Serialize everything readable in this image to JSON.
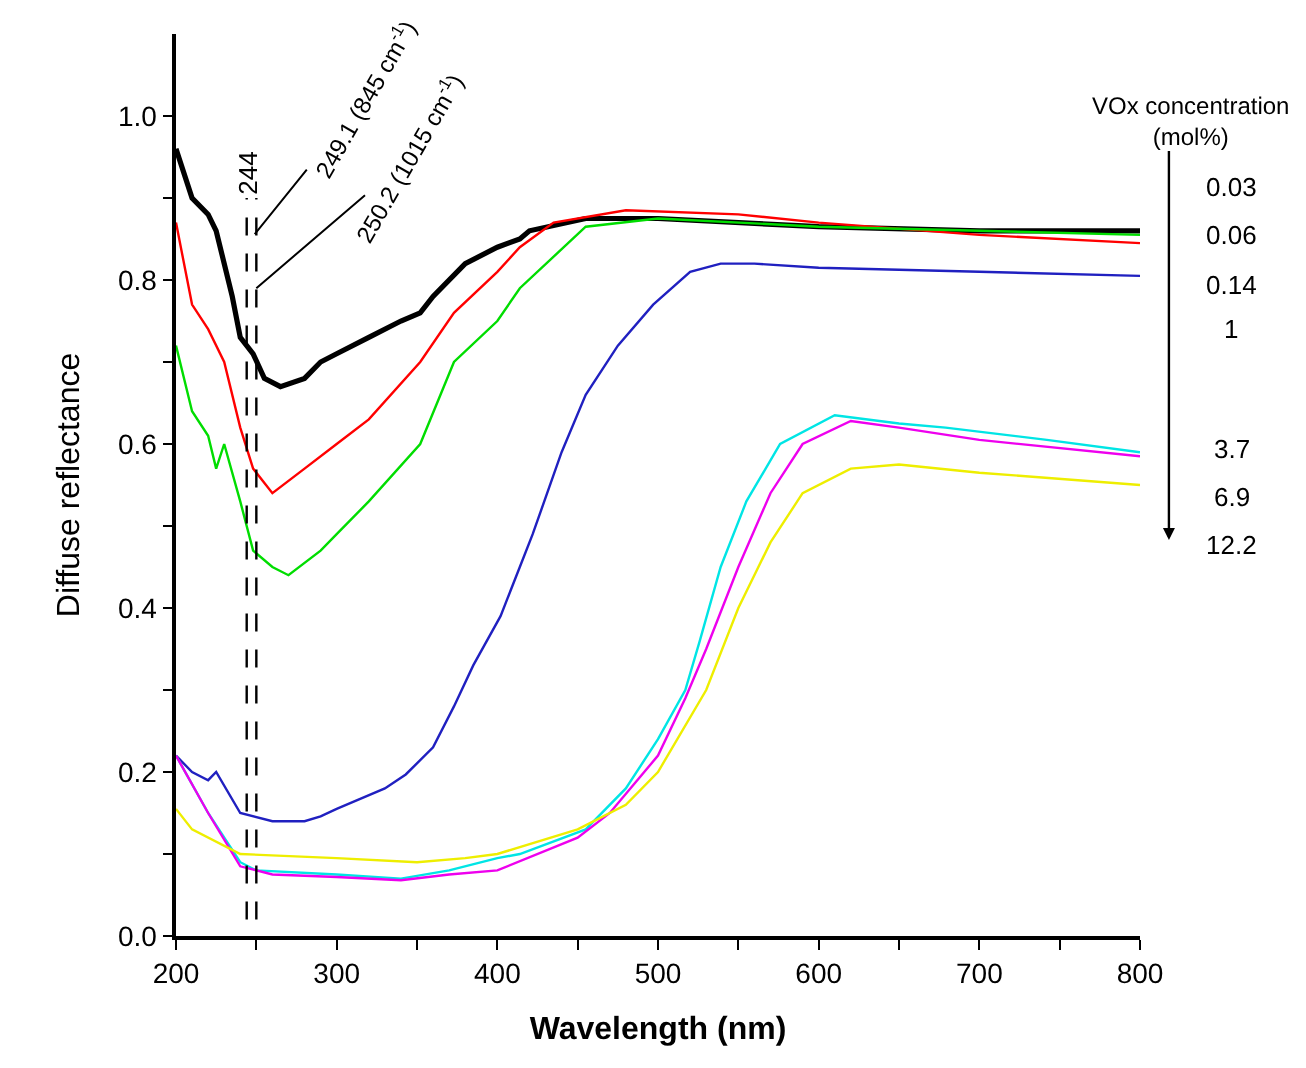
{
  "chart_data": {
    "type": "line",
    "xlabel": "Wavelength (nm)",
    "ylabel": "Diffuse reflectance",
    "xlim": [
      200,
      800
    ],
    "ylim": [
      0,
      1.1
    ],
    "xticks": [
      200,
      {
        "value": 250,
        "label": null
      },
      300,
      {
        "value": 350,
        "label": null
      },
      400,
      {
        "value": 450,
        "label": null
      },
      500,
      {
        "value": 550,
        "label": null
      },
      600,
      {
        "value": 650,
        "label": null
      },
      700,
      {
        "value": 750,
        "label": null
      },
      800
    ],
    "yticks": [
      {
        "value": 0,
        "label": "0.0"
      },
      {
        "value": 0.1,
        "label": null
      },
      0.2,
      {
        "value": 0.3,
        "label": null
      },
      0.4,
      {
        "value": 0.5,
        "label": null
      },
      0.6,
      {
        "value": 0.7,
        "label": null
      },
      0.8,
      {
        "value": 0.9,
        "label": null
      },
      {
        "value": 1.0,
        "label": "1.0"
      }
    ],
    "marker": "none",
    "line_style": "solid",
    "ref_lines": [
      {
        "axis": "x",
        "value": 244,
        "label": "244",
        "line_style": "dashed",
        "color": "#000000"
      },
      {
        "axis": "x",
        "value": 250,
        "label": null,
        "line_style": "dashed",
        "color": "#000000"
      }
    ],
    "annotations": [
      {
        "text": "249.1 (845 cm$^{-1}$)",
        "x": 249,
        "y": 0.856
      },
      {
        "text": "250.2 (1015 cm$^{-1}$)",
        "x": 250,
        "y": 0.79
      },
      "VOx concentration\n(mol%)",
      "0.03",
      "0.06",
      "0.14",
      "1",
      "3.7",
      "6.9",
      "12.2"
    ],
    "series": [
      {
        "color": "#000000",
        "x": [
          200,
          210,
          220,
          225,
          235,
          240,
          248,
          255,
          265,
          280,
          290,
          300,
          320,
          340,
          352,
          360,
          380,
          400,
          414,
          420,
          455,
          500,
          600,
          700,
          800
        ],
        "values": [
          0.96,
          0.9,
          0.88,
          0.86,
          0.78,
          0.73,
          0.71,
          0.68,
          0.67,
          0.68,
          0.7,
          0.71,
          0.73,
          0.75,
          0.76,
          0.78,
          0.82,
          0.84,
          0.85,
          0.86,
          0.875,
          0.875,
          0.865,
          0.86,
          0.86
        ]
      },
      {
        "color": "#ff0000",
        "x": [
          200,
          210,
          220,
          230,
          240,
          248,
          260,
          280,
          300,
          320,
          352,
          373,
          400,
          414,
          435,
          480,
          550,
          600,
          700,
          800
        ],
        "values": [
          0.87,
          0.77,
          0.74,
          0.7,
          0.62,
          0.57,
          0.54,
          0.57,
          0.6,
          0.63,
          0.7,
          0.76,
          0.81,
          0.84,
          0.87,
          0.885,
          0.88,
          0.87,
          0.855,
          0.845
        ]
      },
      {
        "color": "#00dd00",
        "x": [
          200,
          210,
          220,
          225,
          230,
          240,
          248,
          260,
          270,
          290,
          300,
          320,
          352,
          373,
          400,
          414,
          455,
          500,
          600,
          700,
          800
        ],
        "values": [
          0.72,
          0.64,
          0.61,
          0.57,
          0.6,
          0.53,
          0.47,
          0.45,
          0.44,
          0.47,
          0.49,
          0.53,
          0.6,
          0.7,
          0.75,
          0.79,
          0.865,
          0.875,
          0.865,
          0.86,
          0.855
        ]
      },
      {
        "color": "#2020c0",
        "x": [
          200,
          210,
          220,
          225,
          240,
          260,
          280,
          290,
          300,
          330,
          343,
          360,
          373,
          385,
          402,
          414,
          422,
          440,
          455,
          475,
          497,
          520,
          539,
          560,
          600,
          700,
          800
        ],
        "values": [
          0.22,
          0.2,
          0.19,
          0.2,
          0.15,
          0.14,
          0.14,
          0.146,
          0.155,
          0.18,
          0.197,
          0.23,
          0.28,
          0.33,
          0.39,
          0.45,
          0.49,
          0.59,
          0.66,
          0.72,
          0.77,
          0.81,
          0.82,
          0.82,
          0.815,
          0.81,
          0.805
        ]
      },
      {
        "color": "#00e5e5",
        "x": [
          200,
          220,
          240,
          250,
          300,
          340,
          370,
          400,
          414,
          455,
          480,
          500,
          517,
          526,
          539,
          555,
          576,
          610,
          650,
          679,
          742,
          800
        ],
        "values": [
          0.22,
          0.15,
          0.09,
          0.08,
          0.075,
          0.07,
          0.08,
          0.095,
          0.1,
          0.13,
          0.18,
          0.24,
          0.3,
          0.36,
          0.45,
          0.53,
          0.6,
          0.635,
          0.625,
          0.62,
          0.605,
          0.59
        ]
      },
      {
        "color": "#ee00ee",
        "x": [
          200,
          220,
          240,
          260,
          300,
          340,
          370,
          400,
          450,
          470,
          500,
          517,
          530,
          550,
          570,
          590,
          620,
          650,
          700,
          800
        ],
        "values": [
          0.22,
          0.15,
          0.085,
          0.075,
          0.072,
          0.068,
          0.075,
          0.08,
          0.12,
          0.15,
          0.22,
          0.29,
          0.35,
          0.45,
          0.54,
          0.6,
          0.628,
          0.62,
          0.605,
          0.585
        ]
      },
      {
        "color": "#eeee00",
        "x": [
          200,
          210,
          240,
          300,
          350,
          380,
          400,
          450,
          480,
          500,
          530,
          550,
          570,
          590,
          620,
          650,
          700,
          800
        ],
        "values": [
          0.155,
          0.13,
          0.1,
          0.095,
          0.09,
          0.095,
          0.1,
          0.13,
          0.16,
          0.2,
          0.3,
          0.4,
          0.48,
          0.54,
          0.57,
          0.575,
          0.565,
          0.55
        ]
      }
    ]
  }
}
